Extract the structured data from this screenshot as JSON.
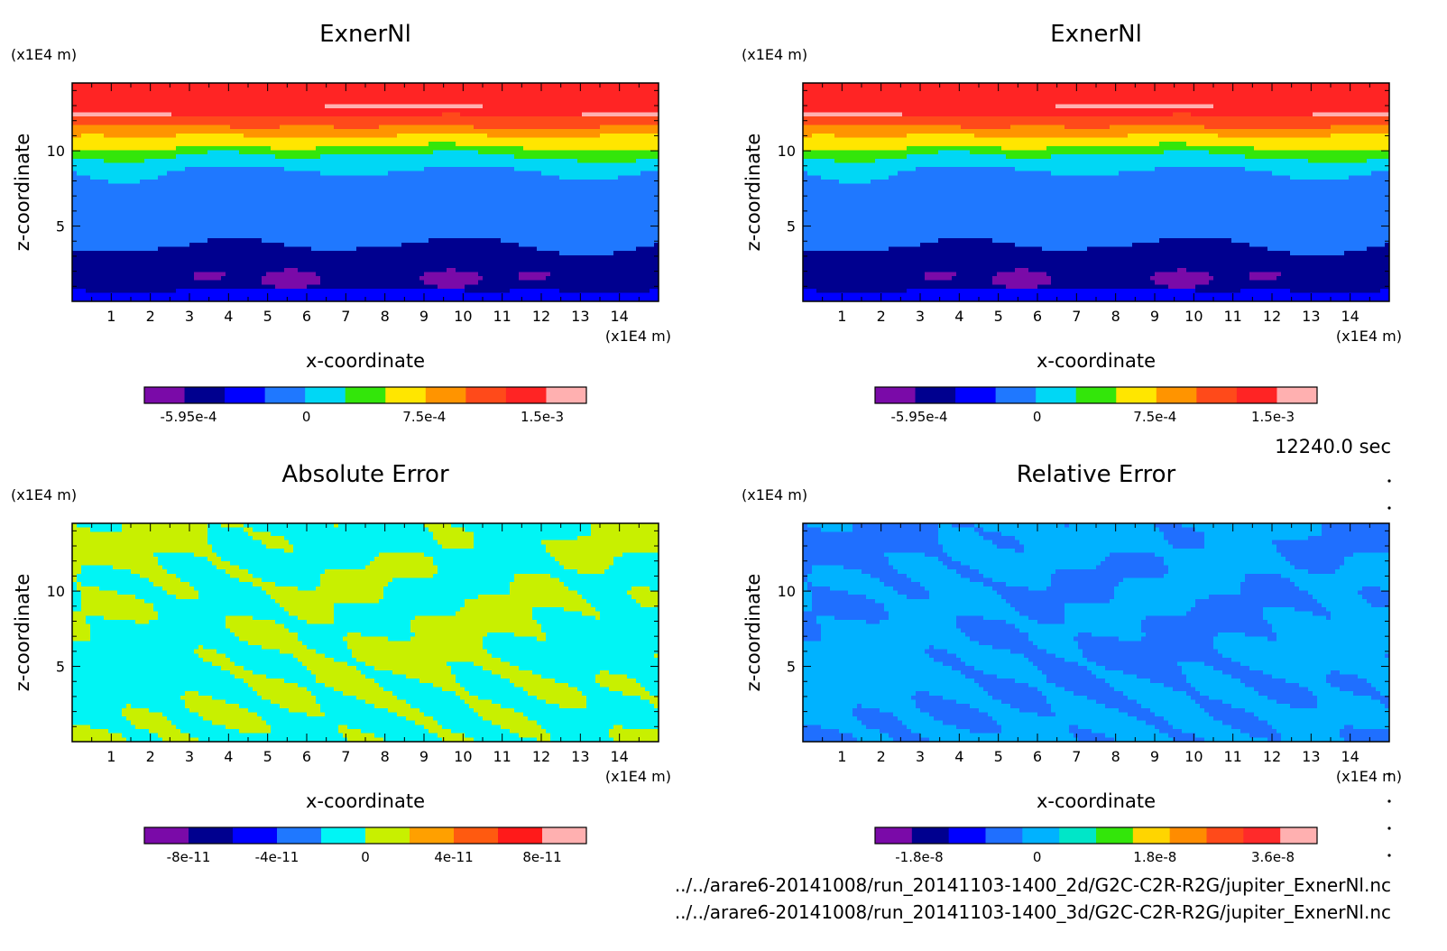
{
  "footer": {
    "time_label": "12240.0 sec",
    "file_1": "../../arare6-20141008/run_20141103-1400_2d/G2C-C2R-R2G/jupiter_ExnerNl.nc",
    "file_2": "../../arare6-20141008/run_20141103-1400_3d/G2C-C2R-R2G/jupiter_ExnerNl.nc"
  },
  "chart_data": [
    {
      "type": "heatmap",
      "title": "ExnerNl",
      "xlabel": "x-coordinate",
      "ylabel": "z-coordinate",
      "x_unit": "(x1E4 m)",
      "y_unit": "(x1E4 m)",
      "xlim": [
        0,
        15
      ],
      "ylim": [
        0,
        14.5
      ],
      "x_ticks": [
        1,
        2,
        3,
        4,
        5,
        6,
        7,
        8,
        9,
        10,
        11,
        12,
        13,
        14
      ],
      "y_ticks": [
        5,
        10
      ],
      "colorbar": {
        "tick_labels": [
          "-5.95e-4",
          "0",
          "7.5e-4",
          "1.5e-3"
        ],
        "colors": [
          "#7a0aa8",
          "#00008f",
          "#0000ff",
          "#1f78ff",
          "#00d7f5",
          "#33e60a",
          "#ffe600",
          "#ff9400",
          "#ff4a1a",
          "#ff2424",
          "#ffb0b0"
        ]
      },
      "field": "exner_layered",
      "features": {
        "bands": [
          {
            "z": 0.7,
            "color": "#0000ff"
          },
          {
            "z": 3.6,
            "color": "#00008f"
          },
          {
            "z": 6.4,
            "color": "#1f78ff"
          },
          {
            "z": 8.6,
            "color": "#1f78ff"
          },
          {
            "z": 9.6,
            "color": "#00d7f5"
          },
          {
            "z": 10.2,
            "color": "#33e60a"
          },
          {
            "z": 11.0,
            "color": "#ffe600"
          },
          {
            "z": 11.6,
            "color": "#ff9400"
          },
          {
            "z": 12.3,
            "color": "#ff4a1a"
          },
          {
            "z": 14.5,
            "color": "#ff2424"
          }
        ],
        "blobs": [
          {
            "x": 3.5,
            "z": 1.7,
            "rx": 0.45,
            "rz": 0.25,
            "color": "#7a0aa8"
          },
          {
            "x": 5.6,
            "z": 1.5,
            "rx": 0.8,
            "rz": 0.6,
            "color": "#7a0aa8"
          },
          {
            "x": 9.7,
            "z": 1.5,
            "rx": 0.8,
            "rz": 0.6,
            "color": "#7a0aa8"
          },
          {
            "x": 11.8,
            "z": 1.7,
            "rx": 0.45,
            "rz": 0.25,
            "color": "#7a0aa8"
          },
          {
            "x": 1.0,
            "z": 12.4,
            "rx": 1.5,
            "rz": 0.25,
            "color": "#ffb0b0"
          },
          {
            "x": 8.5,
            "z": 12.9,
            "rx": 2.1,
            "rz": 0.2,
            "color": "#ffb0b0"
          },
          {
            "x": 14.2,
            "z": 12.4,
            "rx": 1.2,
            "rz": 0.25,
            "color": "#ffb0b0"
          }
        ]
      }
    },
    {
      "type": "heatmap",
      "title": "ExnerNl",
      "xlabel": "x-coordinate",
      "ylabel": "z-coordinate",
      "x_unit": "(x1E4 m)",
      "y_unit": "(x1E4 m)",
      "xlim": [
        0,
        15
      ],
      "ylim": [
        0,
        14.5
      ],
      "x_ticks": [
        1,
        2,
        3,
        4,
        5,
        6,
        7,
        8,
        9,
        10,
        11,
        12,
        13,
        14
      ],
      "y_ticks": [
        5,
        10
      ],
      "colorbar": {
        "tick_labels": [
          "-5.95e-4",
          "0",
          "7.5e-4",
          "1.5e-3"
        ],
        "colors": [
          "#7a0aa8",
          "#00008f",
          "#0000ff",
          "#1f78ff",
          "#00d7f5",
          "#33e60a",
          "#ffe600",
          "#ff9400",
          "#ff4a1a",
          "#ff2424",
          "#ffb0b0"
        ]
      },
      "field": "exner_layered",
      "features": {
        "bands": [
          {
            "z": 0.7,
            "color": "#0000ff"
          },
          {
            "z": 3.6,
            "color": "#00008f"
          },
          {
            "z": 6.4,
            "color": "#1f78ff"
          },
          {
            "z": 8.6,
            "color": "#1f78ff"
          },
          {
            "z": 9.6,
            "color": "#00d7f5"
          },
          {
            "z": 10.2,
            "color": "#33e60a"
          },
          {
            "z": 11.0,
            "color": "#ffe600"
          },
          {
            "z": 11.6,
            "color": "#ff9400"
          },
          {
            "z": 12.3,
            "color": "#ff4a1a"
          },
          {
            "z": 14.5,
            "color": "#ff2424"
          }
        ],
        "blobs": [
          {
            "x": 3.5,
            "z": 1.7,
            "rx": 0.45,
            "rz": 0.25,
            "color": "#7a0aa8"
          },
          {
            "x": 5.6,
            "z": 1.5,
            "rx": 0.8,
            "rz": 0.6,
            "color": "#7a0aa8"
          },
          {
            "x": 9.7,
            "z": 1.5,
            "rx": 0.8,
            "rz": 0.6,
            "color": "#7a0aa8"
          },
          {
            "x": 11.8,
            "z": 1.7,
            "rx": 0.45,
            "rz": 0.25,
            "color": "#7a0aa8"
          },
          {
            "x": 1.0,
            "z": 12.4,
            "rx": 1.5,
            "rz": 0.25,
            "color": "#ffb0b0"
          },
          {
            "x": 8.5,
            "z": 12.9,
            "rx": 2.1,
            "rz": 0.2,
            "color": "#ffb0b0"
          },
          {
            "x": 14.2,
            "z": 12.4,
            "rx": 1.2,
            "rz": 0.25,
            "color": "#ffb0b0"
          }
        ]
      }
    },
    {
      "type": "heatmap",
      "title": "Absolute Error",
      "xlabel": "x-coordinate",
      "ylabel": "z-coordinate",
      "x_unit": "(x1E4 m)",
      "y_unit": "(x1E4 m)",
      "xlim": [
        0,
        15
      ],
      "ylim": [
        0,
        14.5
      ],
      "x_ticks": [
        1,
        2,
        3,
        4,
        5,
        6,
        7,
        8,
        9,
        10,
        11,
        12,
        13,
        14
      ],
      "y_ticks": [
        5,
        10
      ],
      "colorbar": {
        "tick_labels": [
          "-8e-11",
          "-4e-11",
          "0",
          "4e-11",
          "8e-11"
        ],
        "colors": [
          "#7a0aa8",
          "#00008f",
          "#0000ff",
          "#1f78ff",
          "#00f5f5",
          "#c8f000",
          "#ffa000",
          "#ff5a10",
          "#ff1a1a",
          "#ffb0b0"
        ]
      },
      "field": "error_noise",
      "features": {
        "base_color": "#00f5f5",
        "patch_color": "#c8f000",
        "threshold": 0.05,
        "seed": 7
      }
    },
    {
      "type": "heatmap",
      "title": "Relative Error",
      "xlabel": "x-coordinate",
      "ylabel": "z-coordinate",
      "x_unit": "(x1E4 m)",
      "y_unit": "(x1E4 m)",
      "xlim": [
        0,
        15
      ],
      "ylim": [
        0,
        14.5
      ],
      "x_ticks": [
        1,
        2,
        3,
        4,
        5,
        6,
        7,
        8,
        9,
        10,
        11,
        12,
        13,
        14
      ],
      "y_ticks": [
        5,
        10
      ],
      "colorbar": {
        "tick_labels": [
          "-1.8e-8",
          "0",
          "1.8e-8",
          "3.6e-8"
        ],
        "colors": [
          "#7a0aa8",
          "#00008f",
          "#0000ff",
          "#1f6fff",
          "#00b2ff",
          "#00e6c8",
          "#33e60a",
          "#ffd500",
          "#ff8c00",
          "#ff4a1a",
          "#ff2a2a",
          "#ffb0b0"
        ]
      },
      "field": "error_noise",
      "features": {
        "base_color": "#00b2ff",
        "patch_color": "#1f6fff",
        "threshold": 0.05,
        "seed": 7
      }
    }
  ]
}
